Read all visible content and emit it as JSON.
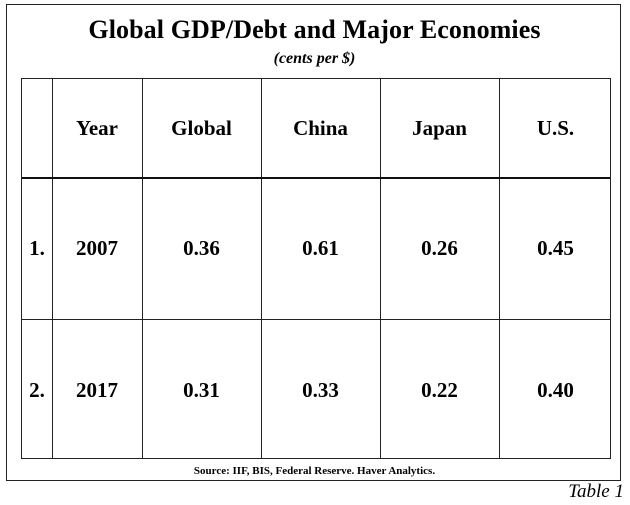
{
  "chart_data": {
    "type": "table",
    "title": "Global GDP/Debt and Major Economies",
    "subtitle": "(cents per $)",
    "columns": [
      "Year",
      "Global",
      "China",
      "Japan",
      "U.S."
    ],
    "rows": [
      {
        "index": "1.",
        "cells": [
          "2007",
          "0.36",
          "0.61",
          "0.26",
          "0.45"
        ]
      },
      {
        "index": "2.",
        "cells": [
          "2017",
          "0.31",
          "0.33",
          "0.22",
          "0.40"
        ]
      }
    ],
    "source": "Source: IIF, BIS, Federal Reserve. Haver Analytics.",
    "caption": "Table 1"
  }
}
